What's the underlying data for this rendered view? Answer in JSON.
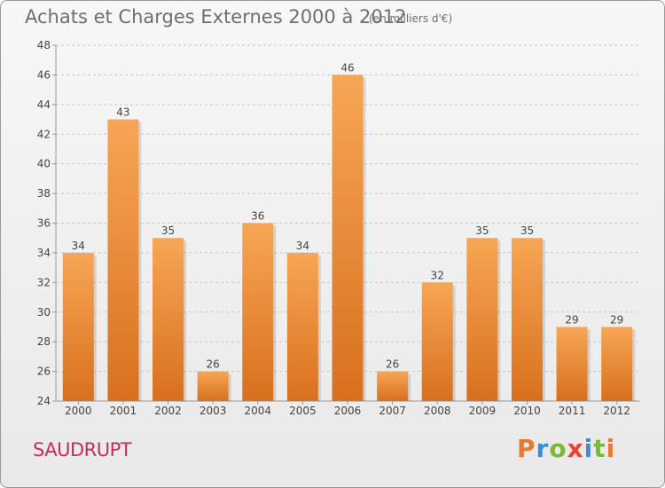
{
  "title": "Achats et Charges Externes 2000 à 2012",
  "subtitle": "(en milliers d'€)",
  "commune": "SAUDRUPT",
  "logo": {
    "text": "Proxiti",
    "letters": [
      {
        "char": "P",
        "color": "#e8792e"
      },
      {
        "char": "r",
        "color": "#3a8fd6"
      },
      {
        "char": "o",
        "color": "#7ab83a"
      },
      {
        "char": "x",
        "color": "#e8442e"
      },
      {
        "char": "i",
        "color": "#3a8fd6"
      },
      {
        "char": "t",
        "color": "#7ab83a"
      },
      {
        "char": "i",
        "color": "#e8792e"
      }
    ]
  },
  "colors": {
    "bar_light": "#f7a655",
    "bar_dark": "#d8701e",
    "grid": "#c8c8c8",
    "axis": "#999999",
    "title": "#6e6e6e",
    "commune": "#c0305a"
  },
  "chart_data": {
    "type": "bar",
    "title": "Achats et Charges Externes 2000 à 2012",
    "subtitle": "(en milliers d'€)",
    "categories": [
      "2000",
      "2001",
      "2002",
      "2003",
      "2004",
      "2005",
      "2006",
      "2007",
      "2008",
      "2009",
      "2010",
      "2011",
      "2012"
    ],
    "values": [
      34,
      43,
      35,
      26,
      36,
      34,
      46,
      26,
      32,
      35,
      35,
      29,
      29
    ],
    "ylim": [
      24,
      48
    ],
    "yticks": [
      24,
      26,
      28,
      30,
      32,
      34,
      36,
      38,
      40,
      42,
      44,
      46,
      48
    ],
    "grid": true,
    "xlabel": "",
    "ylabel": ""
  }
}
